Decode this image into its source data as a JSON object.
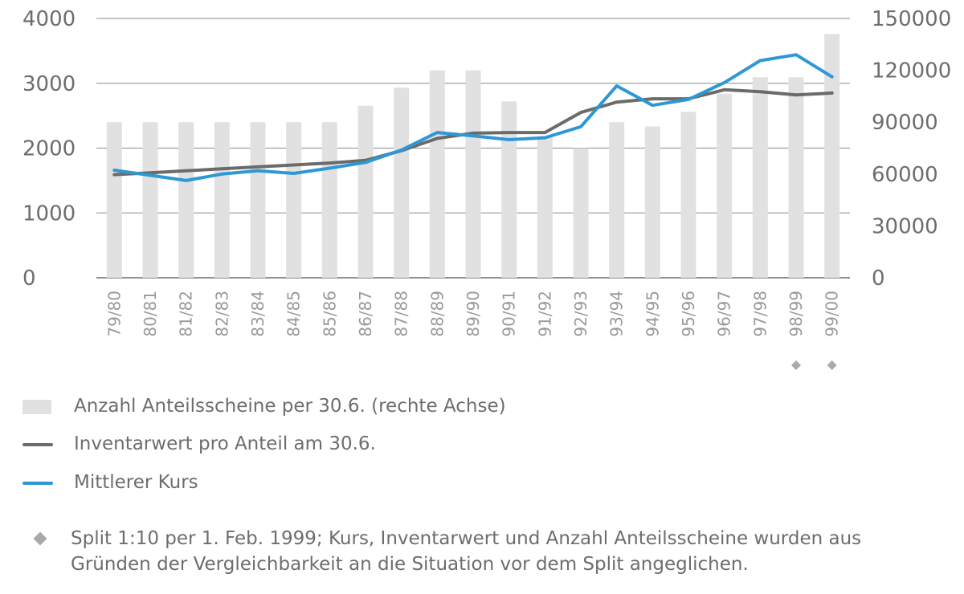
{
  "chart_data": {
    "type": "bar",
    "categories": [
      "79/80",
      "80/81",
      "81/82",
      "82/83",
      "83/84",
      "84/85",
      "85/86",
      "86/87",
      "87/88",
      "88/89",
      "89/90",
      "90/91",
      "91/92",
      "92/93",
      "93/94",
      "94/95",
      "95/96",
      "96/97",
      "97/98",
      "98/99",
      "99/00"
    ],
    "split_marked_categories": [
      "98/99",
      "99/00"
    ],
    "y_left": {
      "ylim": [
        0,
        4000
      ],
      "ticks": [
        "0",
        "1000",
        "2000",
        "3000",
        "4000"
      ]
    },
    "y_right": {
      "ylim": [
        0,
        150000
      ],
      "ticks": [
        "0",
        "30000",
        "60000",
        "90000",
        "120000",
        "150000"
      ]
    },
    "grid": "horizontal",
    "series": [
      {
        "name": "Anzahl Anteilsscheine per 30.6. (rechte Achse)",
        "type": "bar",
        "axis": "right",
        "color": "#e1e1e1",
        "values": [
          90000,
          90000,
          90000,
          90000,
          90000,
          90000,
          90000,
          99500,
          110000,
          120000,
          120000,
          102000,
          82000,
          75000,
          90000,
          87500,
          96000,
          106500,
          116000,
          116000,
          141000
        ]
      },
      {
        "name": "Inventarwert pro Anteil am 30.6.",
        "type": "line",
        "axis": "left",
        "color": "#6b6b69",
        "values": [
          1590,
          1620,
          1650,
          1680,
          1710,
          1740,
          1770,
          1810,
          1960,
          2150,
          2230,
          2240,
          2240,
          2550,
          2710,
          2760,
          2760,
          2900,
          2870,
          2820,
          2850
        ]
      },
      {
        "name": "Mittlerer Kurs",
        "type": "line",
        "axis": "left",
        "color": "#2e98d6",
        "values": [
          1660,
          1580,
          1500,
          1600,
          1650,
          1610,
          1690,
          1780,
          1970,
          2240,
          2190,
          2130,
          2160,
          2330,
          2960,
          2660,
          2750,
          3010,
          3350,
          3440,
          3100
        ]
      }
    ]
  },
  "legend": {
    "bars_label": "Anzahl Anteilsscheine per 30.6. (rechte Achse)",
    "inventar_label": "Inventarwert pro Anteil am 30.6.",
    "kurs_label": "Mittlerer Kurs"
  },
  "footnote": "Split 1:10 per 1. Feb. 1999; Kurs, Inventarwert und Anzahl Anteilsscheine wurden aus Gründen der Vergleichbarkeit an die Situation vor dem Split angeglichen."
}
